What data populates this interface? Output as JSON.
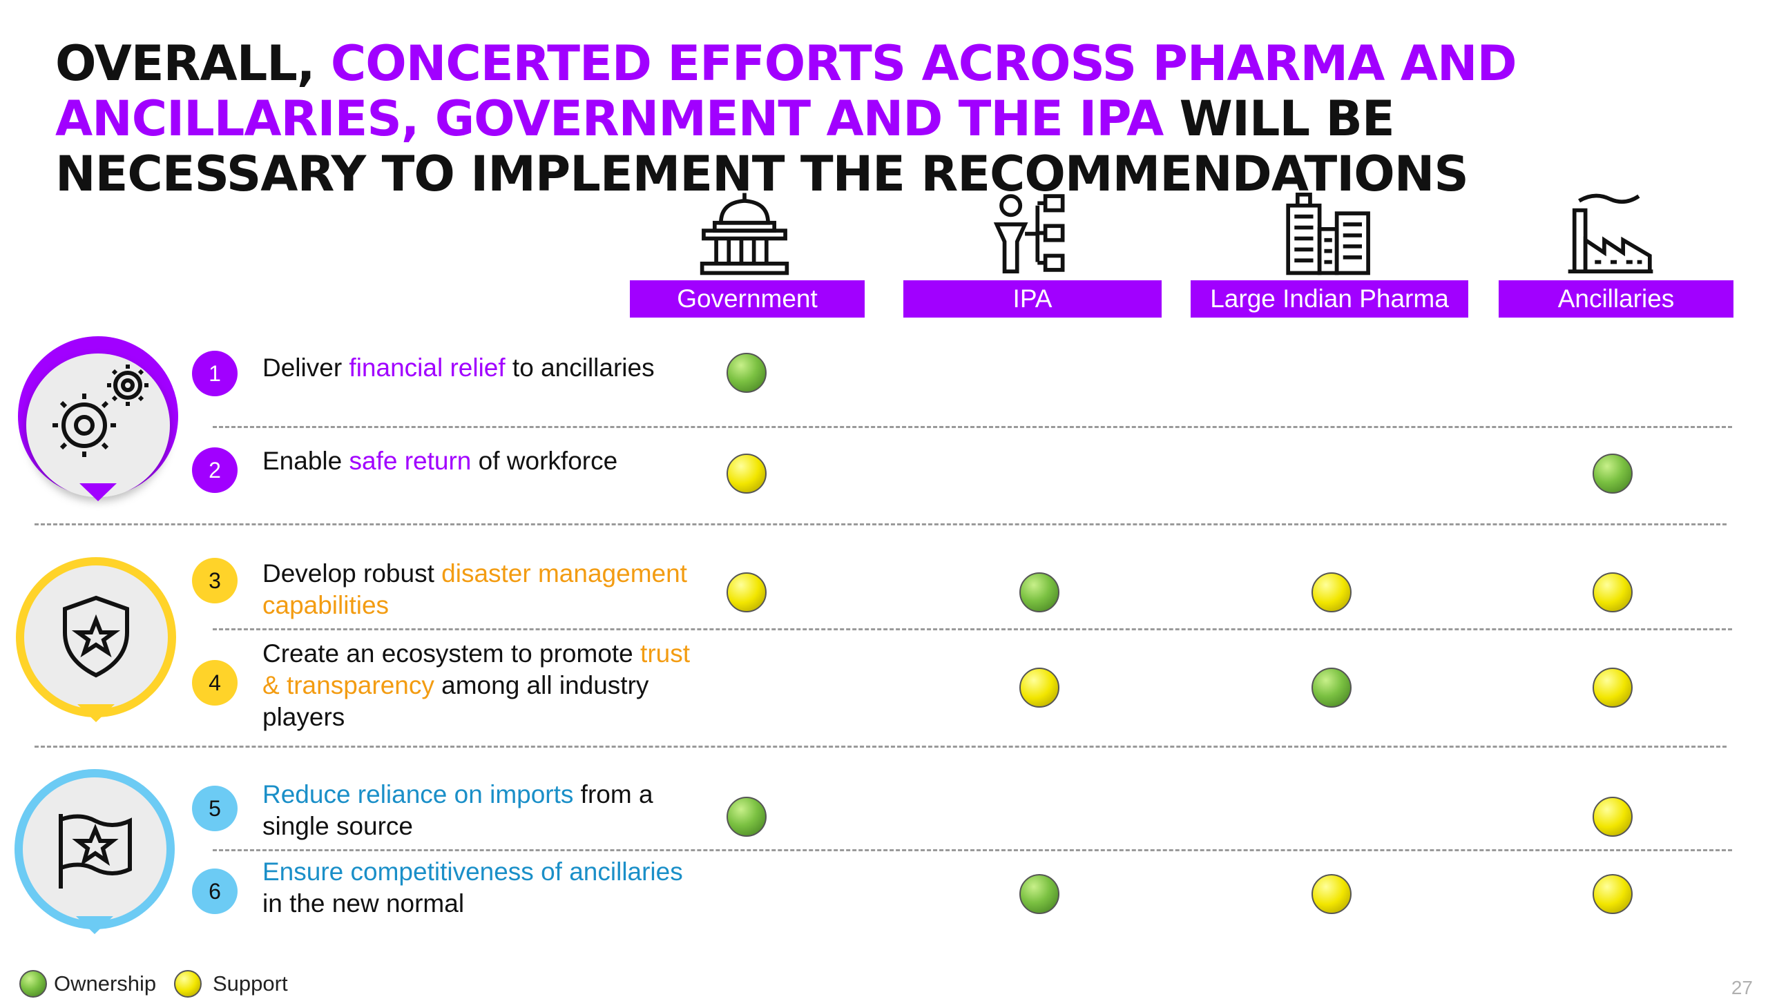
{
  "title": {
    "part1": "OVERALL, ",
    "part2": "CONCERTED EFFORTS ACROSS PHARMA AND ANCILLARIES, GOVERNMENT AND THE IPA",
    "part3": " WILL BE NECESSARY TO IMPLEMENT THE RECOMMENDATIONS"
  },
  "columns": [
    {
      "label": "Government",
      "icon": "government-building-icon"
    },
    {
      "label": "IPA",
      "icon": "org-chart-person-icon"
    },
    {
      "label": "Large Indian Pharma",
      "icon": "city-buildings-icon"
    },
    {
      "label": "Ancillaries",
      "icon": "factory-icon"
    }
  ],
  "groups": [
    {
      "icon": "gears-icon",
      "color": "#a100ff"
    },
    {
      "icon": "shield-star-icon",
      "color": "#ffd329"
    },
    {
      "icon": "flag-star-icon",
      "color": "#6ccbf4"
    }
  ],
  "recommendations": [
    {
      "number": "1",
      "text_before": "Deliver ",
      "highlight": "financial relief",
      "text_after": " to ancillaries"
    },
    {
      "number": "2",
      "text_before": "Enable ",
      "highlight": "safe return",
      "text_after": " of workforce"
    },
    {
      "number": "3",
      "text_before": "Develop robust ",
      "highlight": "disaster management capabilities",
      "text_after": ""
    },
    {
      "number": "4",
      "text_before": "Create an ecosystem to promote ",
      "highlight": "trust & transparency",
      "text_after": " among all industry players"
    },
    {
      "number": "5",
      "text_before": "",
      "highlight": "Reduce reliance on imports",
      "text_after": " from a single source"
    },
    {
      "number": "6",
      "text_before": "",
      "highlight": "Ensure competitiveness of ancillaries",
      "text_after": " in the new normal"
    }
  ],
  "matrix": [
    [
      "ownership",
      null,
      null,
      null
    ],
    [
      "support",
      null,
      null,
      "ownership"
    ],
    [
      "support",
      "ownership",
      "support",
      "support"
    ],
    [
      null,
      "support",
      "ownership",
      "support"
    ],
    [
      "ownership",
      null,
      null,
      "support"
    ],
    [
      null,
      "ownership",
      "support",
      "support"
    ]
  ],
  "legend": {
    "ownership": "Ownership",
    "support": "Support",
    "ownership_color": "#7bc142",
    "support_color": "#f2e600"
  },
  "page_number": "27"
}
